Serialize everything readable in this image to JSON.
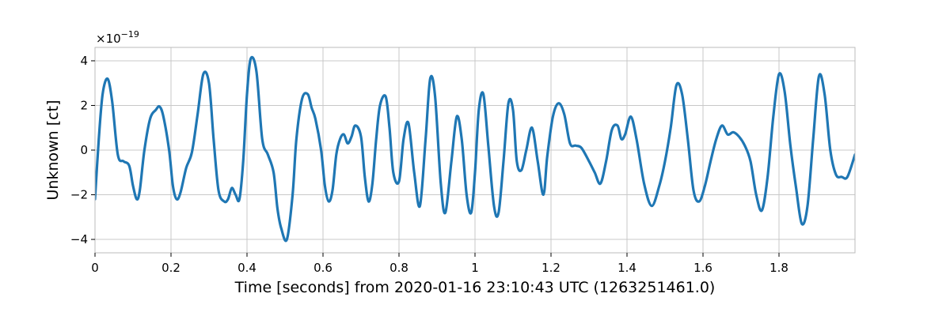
{
  "chart_data": {
    "type": "line",
    "title": "",
    "xlabel": "Time [seconds] from 2020-01-16 23:10:43 UTC (1263251461.0)",
    "ylabel": "Unknown [ct]",
    "y_offset_text": {
      "base": "×10",
      "exponent": "−19"
    },
    "xlim": [
      0,
      2
    ],
    "ylim": [
      -4.6,
      4.6
    ],
    "x_ticks": [
      0,
      0.2,
      0.4,
      0.6,
      0.8,
      1,
      1.2,
      1.4,
      1.6,
      1.8
    ],
    "x_tick_labels": [
      "0",
      "0.2",
      "0.4",
      "0.6",
      "0.8",
      "1",
      "1.2",
      "1.4",
      "1.6",
      "1.8"
    ],
    "y_ticks": [
      -4,
      -2,
      0,
      2,
      4
    ],
    "y_tick_labels": [
      "−4",
      "−2",
      "0",
      "2",
      "4"
    ],
    "grid": true,
    "legend": "none",
    "line_color": "#1f77b4",
    "series": [
      {
        "x": [
          0.0,
          0.01,
          0.02,
          0.033,
          0.045,
          0.06,
          0.075,
          0.09,
          0.1,
          0.11,
          0.118,
          0.13,
          0.145,
          0.16,
          0.17,
          0.18,
          0.195,
          0.205,
          0.215,
          0.225,
          0.24,
          0.255,
          0.27,
          0.285,
          0.3,
          0.312,
          0.325,
          0.34,
          0.35,
          0.36,
          0.37,
          0.38,
          0.39,
          0.4,
          0.41,
          0.425,
          0.44,
          0.455,
          0.47,
          0.48,
          0.49,
          0.505,
          0.52,
          0.53,
          0.545,
          0.56,
          0.57,
          0.58,
          0.595,
          0.605,
          0.615,
          0.625,
          0.635,
          0.645,
          0.655,
          0.665,
          0.675,
          0.685,
          0.7,
          0.71,
          0.72,
          0.73,
          0.74,
          0.75,
          0.765,
          0.775,
          0.785,
          0.8,
          0.812,
          0.825,
          0.84,
          0.855,
          0.87,
          0.882,
          0.895,
          0.91,
          0.922,
          0.938,
          0.952,
          0.965,
          0.978,
          0.99,
          1.0,
          1.01,
          1.022,
          1.035,
          1.05,
          1.062,
          1.075,
          1.088,
          1.1,
          1.11,
          1.122,
          1.135,
          1.15,
          1.165,
          1.18,
          1.19,
          1.205,
          1.22,
          1.235,
          1.25,
          1.265,
          1.28,
          1.3,
          1.315,
          1.33,
          1.345,
          1.36,
          1.375,
          1.385,
          1.395,
          1.41,
          1.425,
          1.445,
          1.465,
          1.485,
          1.5,
          1.515,
          1.53,
          1.545,
          1.56,
          1.575,
          1.59,
          1.605,
          1.62,
          1.635,
          1.65,
          1.665,
          1.68,
          1.695,
          1.71,
          1.725,
          1.74,
          1.755,
          1.77,
          1.785,
          1.8,
          1.815,
          1.83,
          1.845,
          1.86,
          1.875,
          1.89,
          1.905,
          1.92,
          1.935,
          1.95,
          1.965,
          1.98,
          2.0
        ],
        "y": [
          -2.2,
          0.5,
          2.5,
          3.2,
          2.2,
          -0.2,
          -0.5,
          -0.7,
          -1.6,
          -2.2,
          -1.8,
          0.0,
          1.4,
          1.8,
          1.95,
          1.5,
          0.0,
          -1.6,
          -2.2,
          -1.9,
          -0.8,
          -0.1,
          1.6,
          3.4,
          3.0,
          0.5,
          -1.8,
          -2.3,
          -2.2,
          -1.7,
          -2.0,
          -2.2,
          -0.5,
          2.5,
          4.1,
          3.5,
          0.5,
          -0.2,
          -1.0,
          -2.6,
          -3.5,
          -4.0,
          -2.0,
          0.5,
          2.3,
          2.5,
          1.9,
          1.4,
          0.0,
          -1.6,
          -2.3,
          -1.8,
          -0.2,
          0.5,
          0.7,
          0.3,
          0.6,
          1.1,
          0.6,
          -1.2,
          -2.3,
          -1.5,
          0.5,
          2.0,
          2.4,
          1.0,
          -1.0,
          -1.4,
          0.5,
          1.2,
          -1.0,
          -2.5,
          0.5,
          3.2,
          2.4,
          -1.5,
          -2.8,
          -0.5,
          1.5,
          0.5,
          -2.0,
          -2.8,
          -1.0,
          1.8,
          2.5,
          0.2,
          -2.5,
          -2.8,
          -0.5,
          2.1,
          1.8,
          -0.5,
          -0.9,
          0.0,
          1.0,
          -0.5,
          -2.0,
          -0.3,
          1.5,
          2.1,
          1.6,
          0.3,
          0.2,
          0.1,
          -0.5,
          -1.0,
          -1.5,
          -0.5,
          0.9,
          1.1,
          0.5,
          0.7,
          1.5,
          0.5,
          -1.5,
          -2.5,
          -1.6,
          -0.5,
          1.0,
          2.9,
          2.5,
          0.5,
          -1.8,
          -2.3,
          -1.6,
          -0.5,
          0.5,
          1.1,
          0.7,
          0.8,
          0.6,
          0.2,
          -0.5,
          -2.0,
          -2.7,
          -1.2,
          1.5,
          3.4,
          2.6,
          0.2,
          -1.7,
          -3.3,
          -2.5,
          0.5,
          3.3,
          2.5,
          0.0,
          -1.1,
          -1.2,
          -1.2,
          -0.2
        ]
      }
    ]
  }
}
